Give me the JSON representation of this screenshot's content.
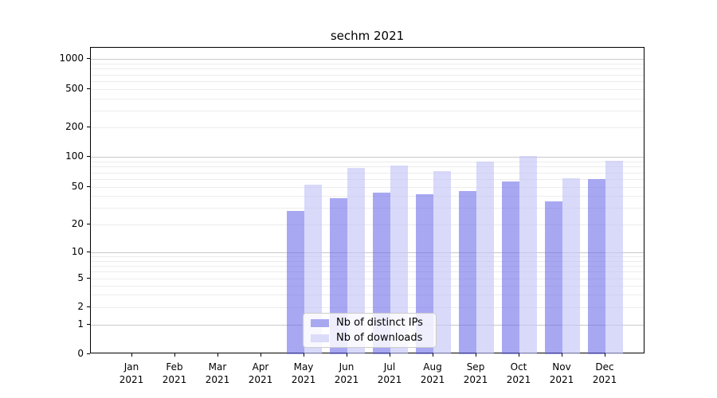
{
  "title": "sechm 2021",
  "legend": {
    "items": [
      {
        "label": "Nb of distinct IPs",
        "swatch_color": "#a8a8f0"
      },
      {
        "label": "Nb of downloads",
        "swatch_color": "#dbdbfa"
      }
    ]
  },
  "colors": {
    "bar_distinct_ips_fill": "rgba(105,105,233,0.58)",
    "bar_downloads_fill": "rgba(196,196,247,0.65)",
    "grid_major": "#c9c9c9",
    "grid_minor": "#ececec",
    "spine": "#000000"
  },
  "chart_data": {
    "type": "bar",
    "title": "sechm 2021",
    "categories": [
      "Jan 2021",
      "Feb 2021",
      "Mar 2021",
      "Apr 2021",
      "May 2021",
      "Jun 2021",
      "Jul 2021",
      "Aug 2021",
      "Sep 2021",
      "Oct 2021",
      "Nov 2021",
      "Dec 2021"
    ],
    "series": [
      {
        "name": "Nb of distinct IPs",
        "values": [
          0,
          0,
          0,
          0,
          28,
          38,
          44,
          42,
          45,
          57,
          35,
          60
        ]
      },
      {
        "name": "Nb of downloads",
        "values": [
          0,
          0,
          0,
          0,
          53,
          78,
          82,
          72,
          89,
          102,
          61,
          91
        ]
      }
    ],
    "xlabel": "",
    "ylabel": "",
    "yscale": "symlog",
    "yticks": [
      0,
      1,
      2,
      5,
      10,
      20,
      50,
      100,
      200,
      500,
      1000
    ],
    "ylim": [
      0,
      1400
    ],
    "grid": true,
    "grid_axis": "y",
    "legend_position": "lower center"
  }
}
